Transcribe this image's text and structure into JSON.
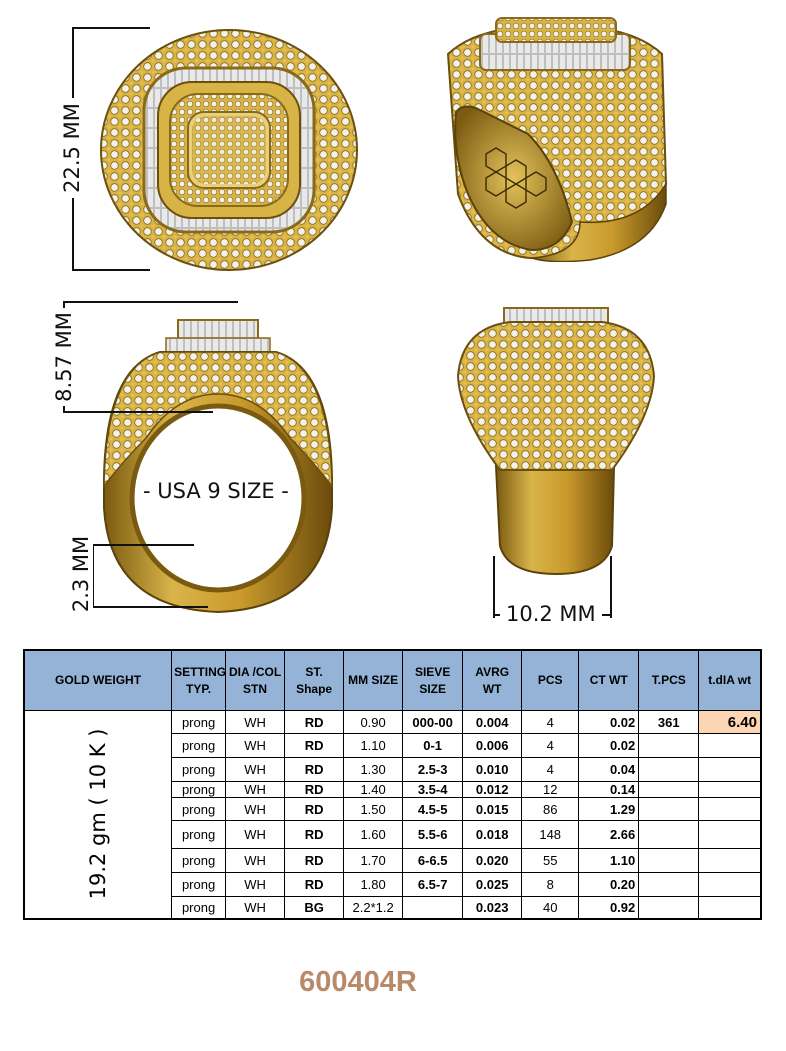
{
  "dimensions": {
    "top_height": "22.5 MM",
    "side_height": "8.57 MM",
    "ring_size": "USA 9 SIZE",
    "shank_thickness": "2.3 MM",
    "shank_width": "10.2 MM"
  },
  "table": {
    "headers": [
      "GOLD WEIGHT",
      "SETTING TYP.",
      "DIA /COL STN",
      "ST. Shape",
      "MM SIZE",
      "SIEVE SIZE",
      "AVRG WT",
      "PCS",
      "CT WT",
      "T.PCS",
      "t.dIA wt"
    ],
    "gold_weight": "19.2 gm ( 10 K )",
    "total_pcs": "361",
    "total_dia_wt": "6.40",
    "rows": [
      {
        "setting": "prong",
        "dia": "WH",
        "shape": "RD",
        "mm": "0.90",
        "sieve": "000-00",
        "avg": "0.004",
        "pcs": "4",
        "ct": "0.02"
      },
      {
        "setting": "prong",
        "dia": "WH",
        "shape": "RD",
        "mm": "1.10",
        "sieve": "0-1",
        "avg": "0.006",
        "pcs": "4",
        "ct": "0.02"
      },
      {
        "setting": "prong",
        "dia": "WH",
        "shape": "RD",
        "mm": "1.30",
        "sieve": "2.5-3",
        "avg": "0.010",
        "pcs": "4",
        "ct": "0.04"
      },
      {
        "setting": "prong",
        "dia": "WH",
        "shape": "RD",
        "mm": "1.40",
        "sieve": "3.5-4",
        "avg": "0.012",
        "pcs": "12",
        "ct": "0.14"
      },
      {
        "setting": "prong",
        "dia": "WH",
        "shape": "RD",
        "mm": "1.50",
        "sieve": "4.5-5",
        "avg": "0.015",
        "pcs": "86",
        "ct": "1.29"
      },
      {
        "setting": "prong",
        "dia": "WH",
        "shape": "RD",
        "mm": "1.60",
        "sieve": "5.5-6",
        "avg": "0.018",
        "pcs": "148",
        "ct": "2.66"
      },
      {
        "setting": "prong",
        "dia": "WH",
        "shape": "RD",
        "mm": "1.70",
        "sieve": "6-6.5",
        "avg": "0.020",
        "pcs": "55",
        "ct": "1.10"
      },
      {
        "setting": "prong",
        "dia": "WH",
        "shape": "RD",
        "mm": "1.80",
        "sieve": "6.5-7",
        "avg": "0.025",
        "pcs": "8",
        "ct": "0.20"
      },
      {
        "setting": "prong",
        "dia": "WH",
        "shape": "BG",
        "mm": "2.2*1.2",
        "sieve": "",
        "avg": "0.023",
        "pcs": "40",
        "ct": "0.92"
      }
    ]
  },
  "model_code": "600404R",
  "colors": {
    "gold": "#c9a02e",
    "gold_dark": "#6b4f0c",
    "diamond": "#f2f2ee",
    "header_bg": "#95b3d7",
    "highlight": "#fcd5b4",
    "code_text": "#b88a6a"
  }
}
